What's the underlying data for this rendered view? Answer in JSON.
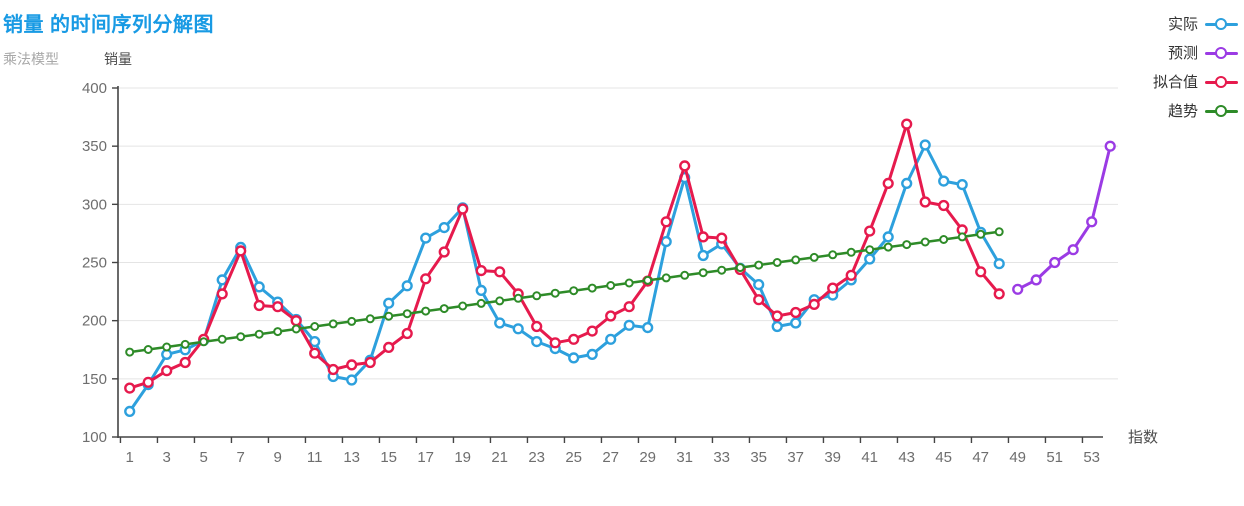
{
  "header": {
    "title": "销量 的时间序列分解图",
    "subtitle": "乘法模型"
  },
  "legend": {
    "position": "top-right",
    "items": [
      {
        "key": "actual",
        "label": "实际",
        "color": "#2da0dd"
      },
      {
        "key": "forecast",
        "label": "预测",
        "color": "#9b3be4"
      },
      {
        "key": "fitted",
        "label": "拟合值",
        "color": "#e61a4d"
      },
      {
        "key": "trend",
        "label": "趋势",
        "color": "#2e8b28"
      }
    ]
  },
  "chart_data": {
    "type": "line",
    "title": "销量 的时间序列分解图",
    "subtitle": "乘法模型",
    "xlabel": "指数",
    "ylabel": "销量",
    "xlim": [
      1,
      54
    ],
    "ylim": [
      100,
      400
    ],
    "yticks": [
      100,
      150,
      200,
      250,
      300,
      350,
      400
    ],
    "xtick_labels": [
      1,
      3,
      5,
      7,
      9,
      11,
      13,
      15,
      17,
      19,
      21,
      23,
      25,
      27,
      29,
      31,
      33,
      35,
      37,
      39,
      41,
      43,
      45,
      47,
      49,
      51,
      53
    ],
    "grid": "horizontal-only",
    "legend_position": "top-right",
    "marker": "open-circle",
    "series": [
      {
        "name": "实际",
        "key": "actual",
        "color": "#2da0dd",
        "x_start": 1,
        "values": [
          122,
          145,
          171,
          175,
          183,
          235,
          263,
          229,
          216,
          201,
          182,
          152,
          149,
          166,
          215,
          230,
          271,
          280,
          297,
          226,
          198,
          193,
          182,
          176,
          168,
          171,
          184,
          196,
          194,
          268,
          323,
          256,
          266,
          245,
          231,
          195,
          198,
          218,
          222,
          235,
          253,
          272,
          318,
          351,
          320,
          317,
          276,
          249
        ]
      },
      {
        "name": "预测",
        "key": "forecast",
        "color": "#9b3be4",
        "x_start": 49,
        "values": [
          227,
          235,
          250,
          261,
          285,
          350
        ]
      },
      {
        "name": "拟合值",
        "key": "fitted",
        "color": "#e61a4d",
        "x_start": 1,
        "values": [
          142,
          147,
          157,
          164,
          184,
          223,
          260,
          213,
          212,
          200,
          172,
          158,
          162,
          164,
          177,
          189,
          236,
          259,
          296,
          243,
          242,
          223,
          195,
          181,
          184,
          191,
          204,
          212,
          234,
          285,
          333,
          272,
          271,
          244,
          218,
          204,
          207,
          214,
          228,
          239,
          277,
          318,
          369,
          302,
          299,
          278,
          242,
          223
        ]
      },
      {
        "name": "趋势",
        "key": "trend",
        "color": "#2e8b28",
        "x_start": 1,
        "values": [
          173,
          175.2,
          177.4,
          179.6,
          181.8,
          184,
          186.2,
          188.4,
          190.6,
          192.8,
          195,
          197.2,
          199.4,
          201.6,
          203.8,
          206,
          208.2,
          210.4,
          212.6,
          214.8,
          217,
          219.2,
          221.4,
          223.6,
          225.8,
          228,
          230.2,
          232.4,
          234.6,
          236.8,
          239,
          241.2,
          243.4,
          245.6,
          247.8,
          250,
          252.2,
          254.4,
          256.6,
          258.8,
          261,
          263.2,
          265.4,
          267.6,
          269.8,
          272,
          274.2,
          276.4
        ]
      }
    ],
    "colors": {
      "title": "#189ae4",
      "subtitle_text": "#a8a8a8",
      "axis_line": "#444444",
      "tick_label": "#6e6e6e",
      "gridline": "#e4e4e4",
      "legend_text": "#333333"
    }
  }
}
